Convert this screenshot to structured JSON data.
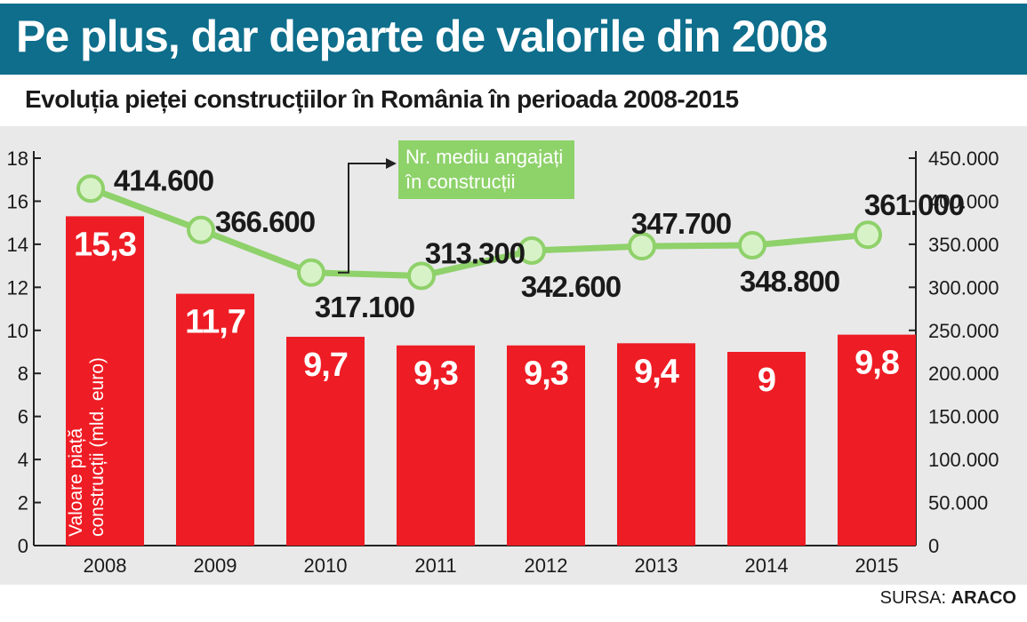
{
  "header": {
    "title": "Pe plus, dar departe de valorile din 2008",
    "subtitle": "Evoluția pieței construcțiilor în România în perioada 2008-2015"
  },
  "source": {
    "label": "SURSA:",
    "name": "ARACO"
  },
  "colors": {
    "title_bar": "#0e6e8c",
    "bar": "#ee1c24",
    "line": "#8fd16a",
    "marker_fill": "#d8f2c8",
    "background": "#e9e9ea"
  },
  "chart_data": {
    "type": "bar",
    "categories": [
      "2008",
      "2009",
      "2010",
      "2011",
      "2012",
      "2013",
      "2014",
      "2015"
    ],
    "series": [
      {
        "name": "Valoare piață construcții (mld. euro)",
        "type": "bar",
        "axis": "left",
        "values": [
          15.3,
          11.7,
          9.7,
          9.3,
          9.3,
          9.4,
          9,
          9.8
        ],
        "labels": [
          "15,3",
          "11,7",
          "9,7",
          "9,3",
          "9,3",
          "9,4",
          "9",
          "9,8"
        ]
      },
      {
        "name": "Nr. mediu angajați în construcții",
        "type": "line",
        "axis": "right",
        "values": [
          414600,
          366600,
          317100,
          313300,
          342600,
          347700,
          348800,
          361000
        ],
        "labels": [
          "414.600",
          "366.600",
          "317.100",
          "313.300",
          "342.600",
          "347.700",
          "348.800",
          "361.000"
        ]
      }
    ],
    "bar_axis_label_lines": [
      "Valoare piață",
      "construcții (mld. euro)"
    ],
    "line_legend_lines": [
      "Nr. mediu angajați",
      "în construcții"
    ],
    "y_left": {
      "ylim": [
        0,
        18
      ],
      "ticks": [
        "0",
        "2",
        "4",
        "6",
        "8",
        "10",
        "12",
        "14",
        "16",
        "18"
      ]
    },
    "y_right": {
      "ylim": [
        0,
        450000
      ],
      "ticks": [
        "0",
        "50.000",
        "100.000",
        "150.000",
        "200.000",
        "250.000",
        "300.000",
        "350.000",
        "400.000",
        "450.000"
      ]
    },
    "grid": false,
    "legend": "top-center"
  }
}
